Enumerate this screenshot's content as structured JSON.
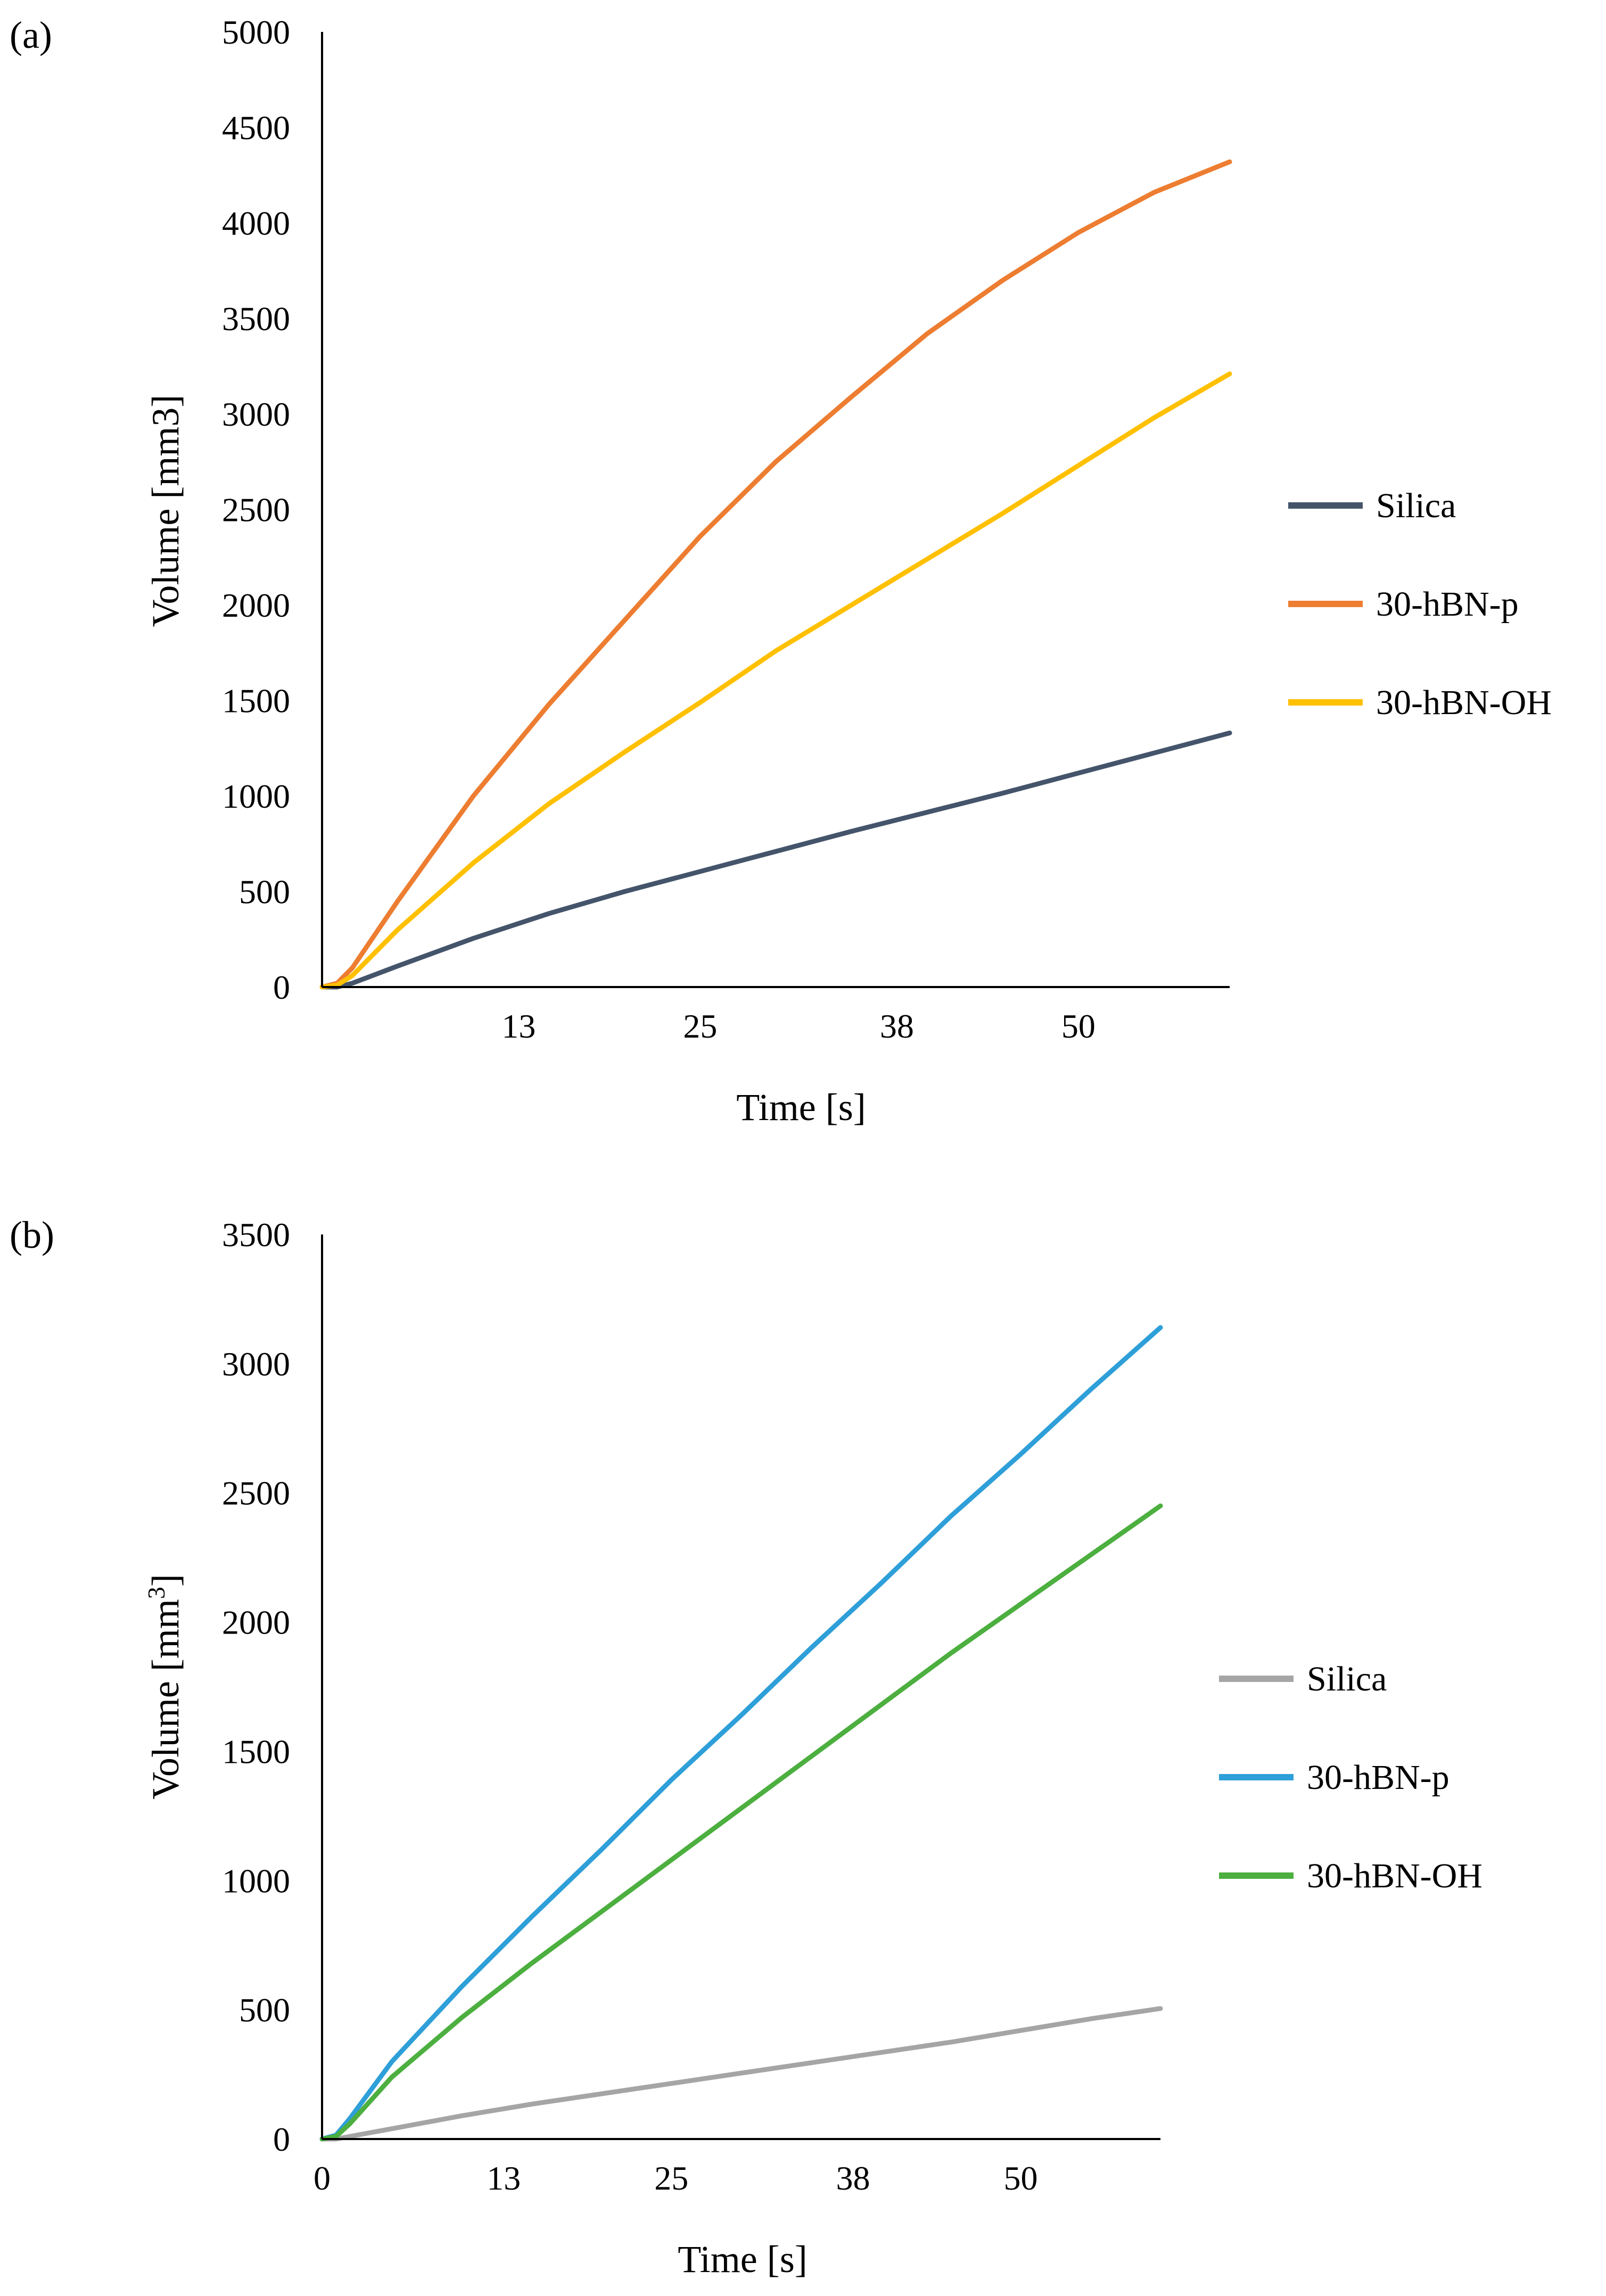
{
  "chart_data": [
    {
      "panel": "a",
      "panel_label_text": "(a)",
      "type": "line",
      "xlabel": "Time [s]",
      "ylabel": "Volume [mm3]",
      "xlim": [
        0,
        60
      ],
      "ylim": [
        0,
        5000
      ],
      "x_ticks": [
        13,
        25,
        38,
        50
      ],
      "y_ticks": [
        0,
        500,
        1000,
        1500,
        2000,
        2500,
        3000,
        3500,
        4000,
        4500,
        5000
      ],
      "legend_position": "right",
      "series": [
        {
          "name": "Silica",
          "color": "#44546a",
          "x": [
            0,
            1,
            2,
            5,
            10,
            15,
            20,
            25,
            30,
            35,
            40,
            45,
            50,
            55,
            60
          ],
          "y": [
            0,
            0,
            20,
            110,
            255,
            385,
            500,
            605,
            710,
            815,
            915,
            1015,
            1120,
            1225,
            1330
          ]
        },
        {
          "name": "30-hBN-p",
          "color": "#ed7d31",
          "x": [
            0,
            1,
            2,
            5,
            10,
            15,
            20,
            25,
            30,
            35,
            40,
            45,
            50,
            55,
            60
          ],
          "y": [
            0,
            20,
            100,
            450,
            1000,
            1480,
            1920,
            2360,
            2750,
            3090,
            3420,
            3700,
            3950,
            4160,
            4320
          ]
        },
        {
          "name": "30-hBN-OH",
          "color": "#ffc000",
          "x": [
            0,
            1,
            2,
            5,
            10,
            15,
            20,
            25,
            30,
            35,
            40,
            45,
            50,
            55,
            60
          ],
          "y": [
            0,
            10,
            60,
            300,
            650,
            960,
            1230,
            1490,
            1760,
            2000,
            2240,
            2480,
            2730,
            2980,
            3210
          ]
        }
      ]
    },
    {
      "panel": "b",
      "panel_label_text": "(b)",
      "type": "line",
      "xlabel": "Time [s]",
      "ylabel_main": "Volume [mm",
      "ylabel_sup": "3",
      "ylabel_end": "]",
      "xlim": [
        0,
        60
      ],
      "ylim": [
        0,
        3500
      ],
      "x_ticks": [
        0,
        13,
        25,
        38,
        50
      ],
      "y_ticks": [
        0,
        500,
        1000,
        1500,
        2000,
        2500,
        3000,
        3500
      ],
      "legend_position": "right",
      "series": [
        {
          "name": "Silica",
          "color": "#a5a5a5",
          "x": [
            0,
            1,
            2,
            5,
            10,
            15,
            20,
            25,
            30,
            35,
            40,
            45,
            50,
            55,
            60
          ],
          "y": [
            0,
            0,
            10,
            40,
            90,
            135,
            175,
            215,
            255,
            295,
            335,
            375,
            420,
            465,
            505
          ]
        },
        {
          "name": "30-hBN-p",
          "color": "#2e9fd8",
          "x": [
            0,
            1,
            2,
            5,
            10,
            15,
            20,
            25,
            30,
            35,
            40,
            45,
            50,
            55,
            60
          ],
          "y": [
            0,
            15,
            80,
            300,
            590,
            860,
            1120,
            1390,
            1640,
            1900,
            2150,
            2410,
            2650,
            2900,
            3140
          ]
        },
        {
          "name": "30-hBN-OH",
          "color": "#4caf3f",
          "x": [
            0,
            1,
            2,
            5,
            10,
            15,
            20,
            25,
            30,
            35,
            40,
            45,
            50,
            55,
            60
          ],
          "y": [
            0,
            10,
            60,
            240,
            470,
            680,
            880,
            1080,
            1280,
            1480,
            1680,
            1880,
            2070,
            2260,
            2450
          ]
        }
      ]
    }
  ]
}
